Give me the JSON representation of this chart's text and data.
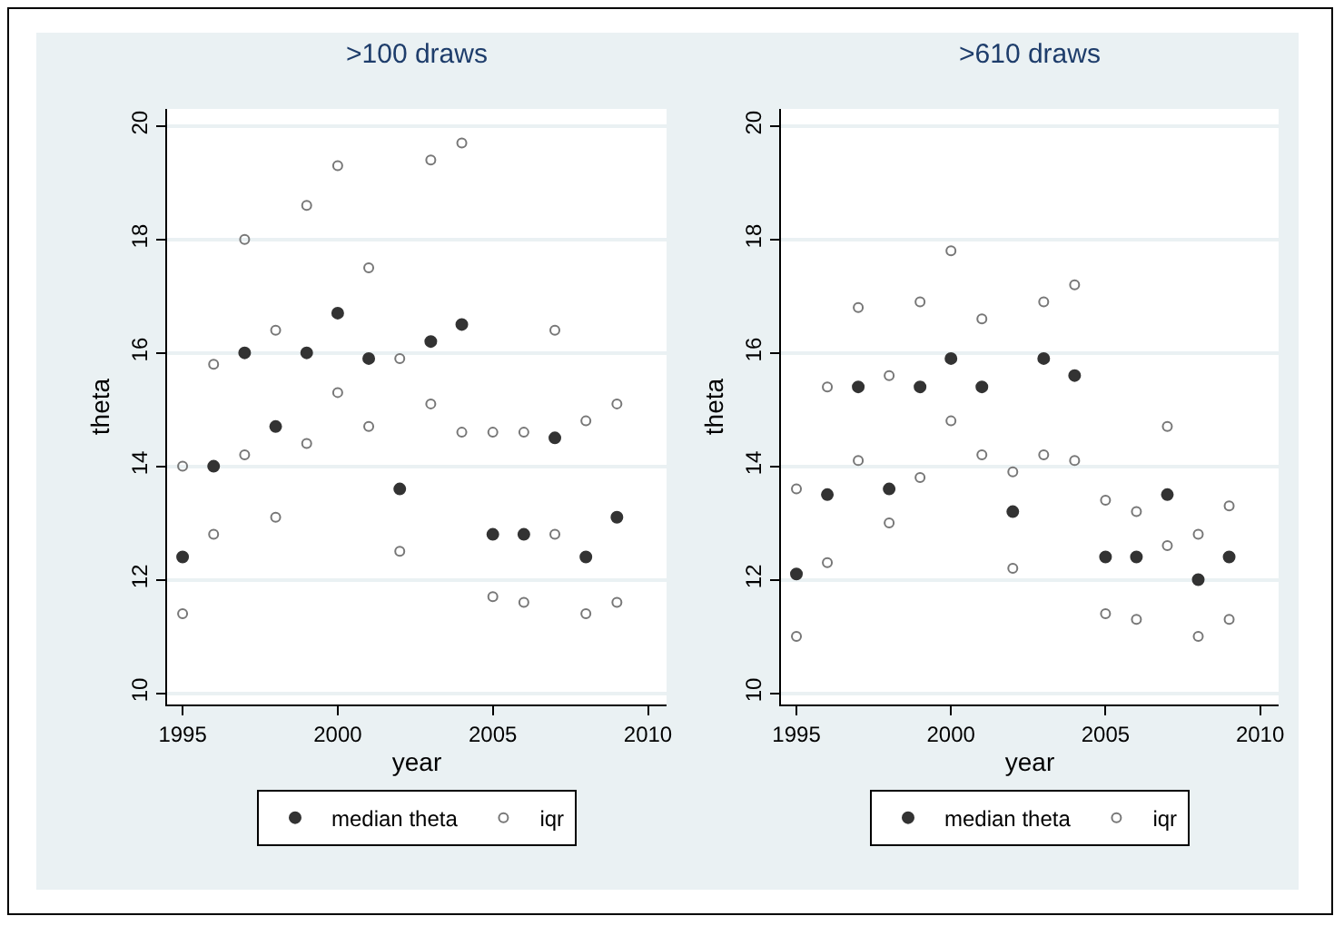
{
  "chart_data": [
    {
      "type": "scatter",
      "title": ">100 draws",
      "xlabel": "year",
      "ylabel": "theta",
      "xlim": [
        1994.5,
        2010.6
      ],
      "xticks": [
        1995,
        2000,
        2005,
        2010
      ],
      "ylim": [
        9.8,
        20.3
      ],
      "yticks": [
        10,
        12,
        14,
        16,
        18,
        20
      ],
      "grid": "y",
      "legend": "bottom",
      "marker": "circle",
      "series": [
        {
          "name": "median theta",
          "color": "#333333",
          "x": [
            1995,
            1996,
            1997,
            1998,
            1999,
            2000,
            2001,
            2002,
            2003,
            2004,
            2005,
            2006,
            2007,
            2008,
            2009
          ],
          "values": [
            12.4,
            14.0,
            16.0,
            14.7,
            16.0,
            16.7,
            15.9,
            13.6,
            16.2,
            16.5,
            12.8,
            12.8,
            14.5,
            12.4,
            13.1
          ]
        },
        {
          "name": "iqr",
          "color": "#777777",
          "x": [
            1995,
            1995,
            1996,
            1996,
            1997,
            1997,
            1998,
            1998,
            1999,
            1999,
            2000,
            2000,
            2001,
            2001,
            2002,
            2002,
            2003,
            2003,
            2004,
            2004,
            2005,
            2005,
            2006,
            2006,
            2007,
            2007,
            2008,
            2008,
            2009,
            2009
          ],
          "values": [
            14.0,
            11.4,
            15.8,
            12.8,
            18.0,
            14.2,
            16.4,
            13.1,
            18.6,
            14.4,
            19.3,
            15.3,
            17.5,
            14.7,
            15.9,
            12.5,
            19.4,
            15.1,
            19.7,
            14.6,
            14.6,
            11.7,
            14.6,
            11.6,
            16.4,
            12.8,
            14.8,
            11.4,
            15.1,
            11.6
          ]
        }
      ]
    },
    {
      "type": "scatter",
      "title": ">610 draws",
      "xlabel": "year",
      "ylabel": "theta",
      "xlim": [
        1994.5,
        2010.6
      ],
      "xticks": [
        1995,
        2000,
        2005,
        2010
      ],
      "ylim": [
        9.8,
        20.3
      ],
      "yticks": [
        10,
        12,
        14,
        16,
        18,
        20
      ],
      "grid": "y",
      "legend": "bottom",
      "marker": "circle",
      "series": [
        {
          "name": "median theta",
          "color": "#333333",
          "x": [
            1995,
            1996,
            1997,
            1998,
            1999,
            2000,
            2001,
            2002,
            2003,
            2004,
            2005,
            2006,
            2007,
            2008,
            2009
          ],
          "values": [
            12.1,
            13.5,
            15.4,
            13.6,
            15.4,
            15.9,
            15.4,
            13.2,
            15.9,
            15.6,
            12.4,
            12.4,
            13.5,
            12.0,
            12.4
          ]
        },
        {
          "name": "iqr",
          "color": "#777777",
          "x": [
            1995,
            1995,
            1996,
            1996,
            1997,
            1997,
            1998,
            1998,
            1999,
            1999,
            2000,
            2000,
            2001,
            2001,
            2002,
            2002,
            2003,
            2003,
            2004,
            2004,
            2005,
            2005,
            2006,
            2006,
            2007,
            2007,
            2008,
            2008,
            2009,
            2009
          ],
          "values": [
            13.6,
            11.0,
            15.4,
            12.3,
            16.8,
            14.1,
            15.6,
            13.0,
            16.9,
            13.8,
            17.8,
            14.8,
            16.6,
            14.2,
            13.9,
            12.2,
            16.9,
            14.2,
            17.2,
            14.1,
            13.4,
            11.4,
            13.2,
            11.3,
            14.7,
            12.6,
            12.8,
            11.0,
            13.3,
            11.3
          ]
        }
      ]
    }
  ]
}
